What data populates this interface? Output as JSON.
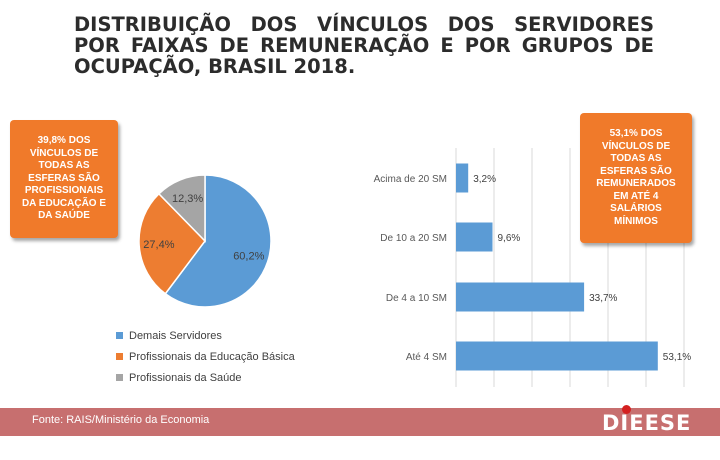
{
  "title": "DISTRIBUIÇÃO DOS VÍNCULOS DOS SERVIDORES POR FAIXAS DE REMUNERAÇÃO E POR GRUPOS DE OCUPAÇÃO, BRASIL 2018.",
  "callout_left": "39,8% DOS VÍNCULOS DE TODAS AS ESFERAS SÃO PROFISSIONAIS DA EDUCAÇÃO E DA SAÚDE",
  "callout_right": "53,1% DOS VÍNCULOS DE TODAS AS ESFERAS SÃO REMUNERADOS EM ATÉ 4 SALÁRIOS MÍNIMOS",
  "footer": {
    "source": "Fonte: RAIS/Ministério da Economia",
    "logo": "DIEESE"
  },
  "colors": {
    "accent_orange": "#f07a2a",
    "footer": "#c76f6f"
  },
  "chart_data": [
    {
      "type": "pie",
      "labels": [
        "Demais Servidores",
        "Profissionais da Educação Básica",
        "Profissionais da Saúde"
      ],
      "values": [
        60.2,
        27.4,
        12.3
      ],
      "data_labels": [
        "60,2%",
        "27,4%",
        "12,3%"
      ],
      "colors": [
        "#5b9bd5",
        "#ed7d31",
        "#a5a5a5"
      ],
      "legend": "bottom"
    },
    {
      "type": "bar",
      "orientation": "horizontal",
      "categories": [
        "Acima de 20 SM",
        "De 10 a 20 SM",
        "De 4 a 10 SM",
        "Até 4 SM"
      ],
      "values": [
        3.2,
        9.6,
        33.7,
        53.1
      ],
      "data_labels": [
        "3,2%",
        "9,6%",
        "33,7%",
        "53,1%"
      ],
      "color": "#5b9bd5",
      "xlim": [
        0,
        60
      ],
      "grid": true
    }
  ]
}
